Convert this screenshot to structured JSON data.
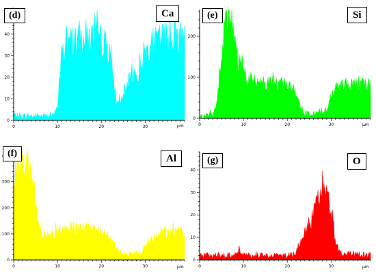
{
  "chart_data": [
    {
      "type": "area",
      "panel_label": "(d)",
      "element": "Ca",
      "color": "#00ffff",
      "xunit": "µm",
      "xlim": [
        0,
        39
      ],
      "ylim": [
        0,
        52
      ],
      "xticks": [
        0,
        10,
        20,
        30
      ],
      "yticks": [
        0,
        10,
        20,
        30,
        40,
        50
      ],
      "profile": [
        [
          0,
          2
        ],
        [
          9,
          2
        ],
        [
          10,
          6
        ],
        [
          10.8,
          28
        ],
        [
          12,
          36
        ],
        [
          16,
          39
        ],
        [
          20,
          37
        ],
        [
          21.5,
          34
        ],
        [
          22.5,
          22
        ],
        [
          23.5,
          8
        ],
        [
          25,
          10
        ],
        [
          27,
          22
        ],
        [
          28.5,
          20
        ],
        [
          29.5,
          30
        ],
        [
          31,
          34
        ],
        [
          34,
          38
        ],
        [
          36,
          39
        ],
        [
          39,
          39
        ]
      ]
    },
    {
      "type": "area",
      "panel_label": "(e)",
      "element": "Si",
      "color": "#00ff00",
      "xunit": "µm",
      "xlim": [
        0,
        39
      ],
      "ylim": [
        0,
        265
      ],
      "xticks": [
        0,
        10,
        20,
        30
      ],
      "yticks": [
        0,
        100,
        200
      ],
      "profile": [
        [
          0,
          4
        ],
        [
          3,
          6
        ],
        [
          3.8,
          30
        ],
        [
          4.6,
          110
        ],
        [
          5.5,
          200
        ],
        [
          6.5,
          240
        ],
        [
          7.5,
          215
        ],
        [
          8.5,
          150
        ],
        [
          9.5,
          110
        ],
        [
          12,
          92
        ],
        [
          16,
          85
        ],
        [
          20,
          82
        ],
        [
          22,
          65
        ],
        [
          23,
          25
        ],
        [
          24,
          10
        ],
        [
          29,
          15
        ],
        [
          30,
          55
        ],
        [
          31,
          78
        ],
        [
          34,
          82
        ],
        [
          39,
          82
        ]
      ]
    },
    {
      "type": "area",
      "panel_label": "(f)",
      "element": "Al",
      "color": "#ffff00",
      "xunit": "µm",
      "xlim": [
        0,
        39
      ],
      "ylim": [
        0,
        420
      ],
      "xticks": [
        0,
        10,
        20,
        30
      ],
      "yticks": [
        0,
        100,
        200,
        300,
        400
      ],
      "profile": [
        [
          0,
          360
        ],
        [
          2,
          375
        ],
        [
          3.5,
          355
        ],
        [
          4.5,
          270
        ],
        [
          5.5,
          150
        ],
        [
          6.5,
          90
        ],
        [
          10,
          110
        ],
        [
          14,
          115
        ],
        [
          17,
          125
        ],
        [
          20,
          105
        ],
        [
          22,
          85
        ],
        [
          24,
          30
        ],
        [
          25,
          18
        ],
        [
          29,
          28
        ],
        [
          31,
          70
        ],
        [
          34,
          100
        ],
        [
          39,
          110
        ]
      ]
    },
    {
      "type": "area",
      "panel_label": "(g)",
      "element": "O",
      "color": "#ff0000",
      "xunit": "µm",
      "xlim": [
        0,
        39
      ],
      "ylim": [
        0,
        48
      ],
      "xticks": [
        0,
        10,
        20,
        30
      ],
      "yticks": [
        0,
        10,
        20,
        30,
        40
      ],
      "profile": [
        [
          0,
          2
        ],
        [
          8,
          2
        ],
        [
          9,
          5
        ],
        [
          10,
          2
        ],
        [
          21,
          2
        ],
        [
          22,
          3
        ],
        [
          23,
          8
        ],
        [
          24.5,
          14
        ],
        [
          26,
          20
        ],
        [
          27,
          28
        ],
        [
          28,
          34
        ],
        [
          29,
          30
        ],
        [
          30,
          20
        ],
        [
          31,
          8
        ],
        [
          32,
          3
        ],
        [
          39,
          2
        ]
      ]
    }
  ]
}
